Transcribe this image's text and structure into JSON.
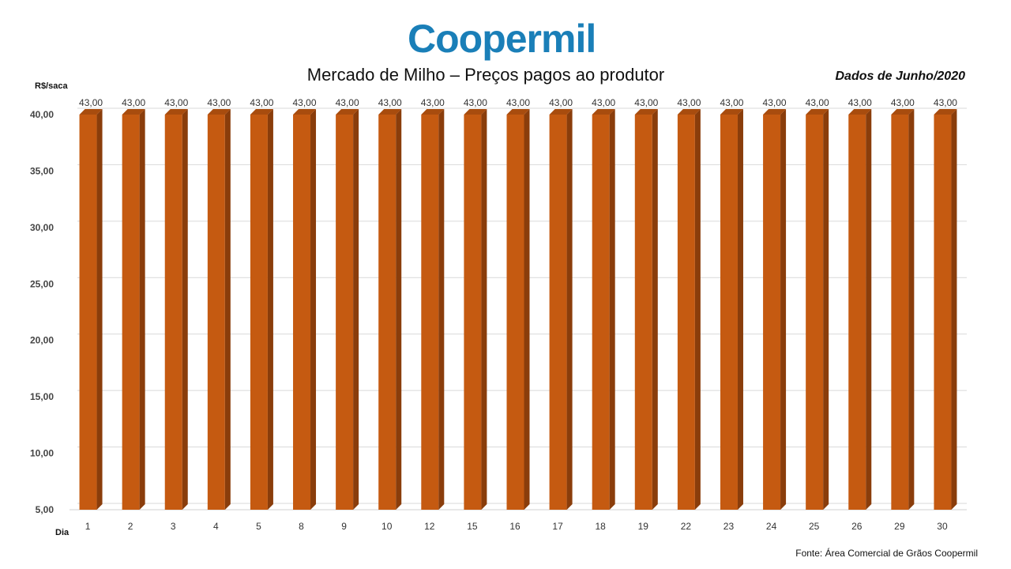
{
  "logo": {
    "text": "Coopermil"
  },
  "header": {
    "title": "Mercado de Milho – Preços pagos ao produtor",
    "dados": "Dados de Junho/2020"
  },
  "axis": {
    "y_unit": "R$/saca",
    "x_unit": "Dia"
  },
  "footer": {
    "source": "Fonte: Área Comercial de Grãos Coopermil"
  },
  "colors": {
    "bar_front": "#c55a11",
    "bar_side": "#8a3d0b",
    "bar_top": "#a84c0e",
    "logo": "#1a7fb8"
  },
  "chart_data": {
    "type": "bar",
    "title": "Mercado de Milho – Preços pagos ao produtor",
    "xlabel": "Dia",
    "ylabel": "R$/saca",
    "categories": [
      "1",
      "2",
      "3",
      "4",
      "5",
      "8",
      "9",
      "10",
      "12",
      "15",
      "16",
      "17",
      "18",
      "19",
      "22",
      "23",
      "24",
      "25",
      "26",
      "29",
      "30"
    ],
    "values": [
      43,
      43,
      43,
      43,
      43,
      43,
      43,
      43,
      43,
      43,
      43,
      43,
      43,
      43,
      43,
      43,
      43,
      43,
      43,
      43,
      43
    ],
    "value_labels": [
      "43,00",
      "43,00",
      "43,00",
      "43,00",
      "43,00",
      "43,00",
      "43,00",
      "43,00",
      "43,00",
      "43,00",
      "43,00",
      "43,00",
      "43,00",
      "43,00",
      "43,00",
      "43,00",
      "43,00",
      "43,00",
      "43,00",
      "43,00",
      "43,00"
    ],
    "ylim": [
      5,
      40
    ],
    "yticks": [
      5,
      10,
      15,
      20,
      25,
      30,
      35,
      40
    ],
    "ytick_labels": [
      "5,00",
      "10,00",
      "15,00",
      "20,00",
      "25,00",
      "30,00",
      "35,00",
      "40,00"
    ],
    "grid": true,
    "legend": "none"
  }
}
